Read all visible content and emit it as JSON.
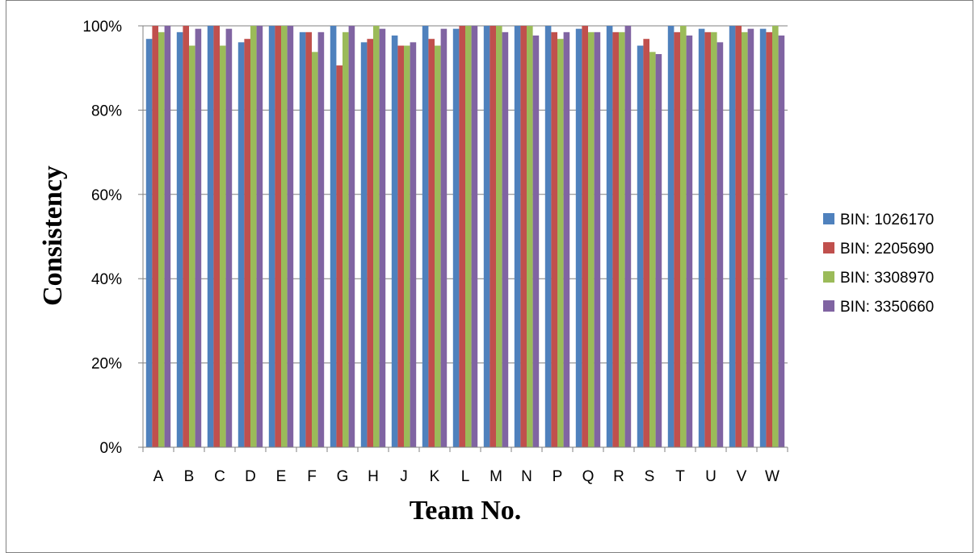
{
  "chart_data": {
    "type": "bar",
    "categories": [
      "A",
      "B",
      "C",
      "D",
      "E",
      "F",
      "G",
      "H",
      "J",
      "K",
      "L",
      "M",
      "N",
      "P",
      "Q",
      "R",
      "S",
      "T",
      "U",
      "V",
      "W"
    ],
    "series": [
      {
        "name": "BIN: 1026170",
        "color": "#4F81BD",
        "values": [
          0.969,
          0.985,
          1.0,
          0.961,
          1.0,
          0.985,
          1.0,
          0.961,
          0.977,
          1.0,
          0.993,
          1.0,
          1.0,
          1.0,
          0.993,
          1.0,
          0.953,
          1.0,
          0.993,
          1.0,
          0.993
        ]
      },
      {
        "name": "BIN: 2205690",
        "color": "#C0504D",
        "values": [
          1.0,
          1.0,
          1.0,
          0.969,
          1.0,
          0.985,
          0.906,
          0.969,
          0.953,
          0.969,
          1.0,
          1.0,
          1.0,
          0.985,
          1.0,
          0.985,
          0.969,
          0.985,
          0.985,
          1.0,
          0.985
        ]
      },
      {
        "name": "BIN: 3308970",
        "color": "#9BBB59",
        "values": [
          0.985,
          0.953,
          0.953,
          1.0,
          1.0,
          0.938,
          0.985,
          1.0,
          0.953,
          0.953,
          1.0,
          1.0,
          1.0,
          0.969,
          0.985,
          0.985,
          0.938,
          1.0,
          0.985,
          0.985,
          1.0
        ]
      },
      {
        "name": "BIN: 3350660",
        "color": "#8064A2",
        "values": [
          1.0,
          0.993,
          0.993,
          1.0,
          1.0,
          0.985,
          1.0,
          0.993,
          0.961,
          0.993,
          1.0,
          0.985,
          0.977,
          0.985,
          0.985,
          1.0,
          0.933,
          0.977,
          0.961,
          0.993,
          0.977
        ]
      }
    ],
    "xlabel": "Team No.",
    "ylabel": "Consistency",
    "ylim": [
      0,
      1
    ],
    "yticks": [
      "0%",
      "20%",
      "40%",
      "60%",
      "80%",
      "100%"
    ],
    "grid": true,
    "legend": "right"
  }
}
